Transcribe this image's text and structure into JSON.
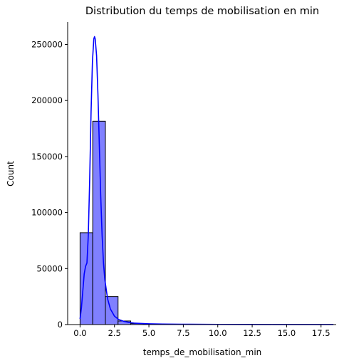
{
  "chart_data": {
    "type": "histogram",
    "title": "Distribution du temps de mobilisation en min",
    "xlabel": "temps_de_mobilisation_min",
    "ylabel": "Count",
    "xlim": [
      -0.9,
      18.6
    ],
    "ylim": [
      0,
      270000
    ],
    "x_ticks": [
      0.0,
      2.5,
      5.0,
      7.5,
      10.0,
      12.5,
      15.0,
      17.5
    ],
    "x_tick_labels": [
      "0.0",
      "2.5",
      "5.0",
      "7.5",
      "10.0",
      "12.5",
      "15.0",
      "17.5"
    ],
    "y_ticks": [
      0,
      50000,
      100000,
      150000,
      200000,
      250000
    ],
    "y_tick_labels": [
      "0",
      "50000",
      "100000",
      "150000",
      "200000",
      "250000"
    ],
    "bin_edges": [
      0.0,
      0.92,
      1.84,
      2.76,
      3.68,
      4.6,
      5.52,
      6.44,
      7.36,
      8.28,
      9.2,
      10.12,
      11.04,
      11.96,
      12.88,
      13.8,
      14.72,
      15.64,
      16.56,
      17.48,
      18.4
    ],
    "counts": [
      82000,
      181500,
      25000,
      3200,
      900,
      400,
      200,
      120,
      80,
      50,
      30,
      20,
      15,
      10,
      8,
      6,
      5,
      4,
      3,
      2
    ],
    "kde": {
      "x": [
        0.0,
        0.1,
        0.2,
        0.3,
        0.4,
        0.5,
        0.6,
        0.7,
        0.8,
        0.9,
        1.0,
        1.05,
        1.1,
        1.2,
        1.3,
        1.4,
        1.5,
        1.6,
        1.7,
        1.8,
        2.0,
        2.2,
        2.5,
        2.8,
        3.2,
        3.6,
        4.0,
        5.0,
        6.0,
        8.0,
        10.0,
        12.0,
        14.0,
        16.0,
        18.4
      ],
      "y": [
        5000,
        15000,
        30000,
        45000,
        52000,
        55000,
        80000,
        130000,
        190000,
        235000,
        255000,
        257000,
        255000,
        240000,
        205000,
        160000,
        115000,
        80000,
        55000,
        40000,
        23000,
        14000,
        7500,
        4500,
        2800,
        1800,
        1200,
        700,
        450,
        250,
        150,
        100,
        70,
        50,
        30
      ]
    },
    "bar_fill": "#8080ff",
    "bar_edge": "#000000",
    "kde_color": "#0000ff",
    "grid": false
  }
}
